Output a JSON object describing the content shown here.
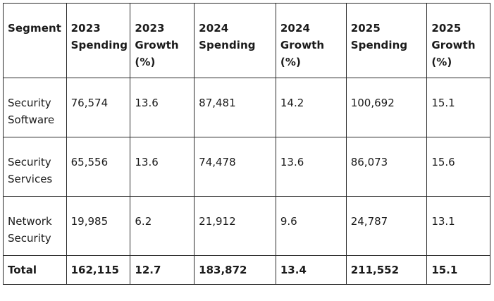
{
  "table": {
    "header": [
      {
        "lines": [
          "Segment"
        ]
      },
      {
        "lines": [
          "2023",
          "Spending"
        ]
      },
      {
        "lines": [
          "2023",
          "Growth",
          "(%)"
        ]
      },
      {
        "lines": [
          "2024",
          "Spending"
        ]
      },
      {
        "lines": [
          "2024",
          "Growth",
          "(%)"
        ]
      },
      {
        "lines": [
          "2025",
          "Spending"
        ]
      },
      {
        "lines": [
          "2025",
          "Growth",
          "(%)"
        ]
      }
    ],
    "rows": [
      {
        "segment": [
          "Security",
          "Software"
        ],
        "cells": [
          "76,574",
          "13.6",
          "87,481",
          "14.2",
          "100,692",
          "15.1"
        ]
      },
      {
        "segment": [
          "Security",
          "Services"
        ],
        "cells": [
          "65,556",
          "13.6",
          "74,478",
          "13.6",
          "86,073",
          "15.6"
        ]
      },
      {
        "segment": [
          "Network",
          "Security"
        ],
        "cells": [
          "19,985",
          "6.2",
          "21,912",
          "9.6",
          "24,787",
          "13.1"
        ]
      }
    ],
    "total": {
      "label": "Total",
      "cells": [
        "162,115",
        "12.7",
        "183,872",
        "13.4",
        "211,552",
        "15.1"
      ]
    }
  }
}
